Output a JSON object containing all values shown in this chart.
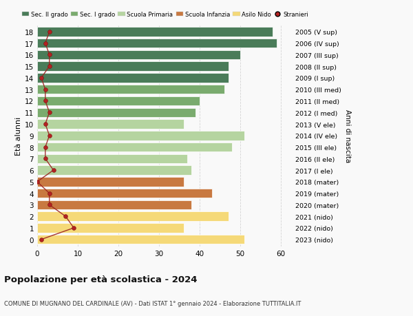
{
  "ages": [
    18,
    17,
    16,
    15,
    14,
    13,
    12,
    11,
    10,
    9,
    8,
    7,
    6,
    5,
    4,
    3,
    2,
    1,
    0
  ],
  "labels_right": [
    "2005 (V sup)",
    "2006 (IV sup)",
    "2007 (III sup)",
    "2008 (II sup)",
    "2009 (I sup)",
    "2010 (III med)",
    "2011 (II med)",
    "2012 (I med)",
    "2013 (V ele)",
    "2014 (IV ele)",
    "2015 (III ele)",
    "2016 (II ele)",
    "2017 (I ele)",
    "2018 (mater)",
    "2019 (mater)",
    "2020 (mater)",
    "2021 (nido)",
    "2022 (nido)",
    "2023 (nido)"
  ],
  "bar_values": [
    58,
    59,
    50,
    47,
    47,
    46,
    40,
    39,
    36,
    51,
    48,
    37,
    38,
    36,
    43,
    38,
    47,
    36,
    51
  ],
  "stranieri": [
    3,
    2,
    3,
    3,
    1,
    2,
    2,
    3,
    2,
    3,
    2,
    2,
    4,
    0,
    3,
    3,
    7,
    9,
    1
  ],
  "bar_colors": [
    "#4a7c59",
    "#4a7c59",
    "#4a7c59",
    "#4a7c59",
    "#4a7c59",
    "#7aab6e",
    "#7aab6e",
    "#7aab6e",
    "#b5d4a0",
    "#b5d4a0",
    "#b5d4a0",
    "#b5d4a0",
    "#b5d4a0",
    "#c87941",
    "#c87941",
    "#c87941",
    "#f5d978",
    "#f5d978",
    "#f5d978"
  ],
  "legend_labels": [
    "Sec. II grado",
    "Sec. I grado",
    "Scuola Primaria",
    "Scuola Infanzia",
    "Asilo Nido",
    "Stranieri"
  ],
  "legend_colors": [
    "#4a7c59",
    "#7aab6e",
    "#b5d4a0",
    "#c87941",
    "#f5d978",
    "#b22222"
  ],
  "stranieri_color": "#b22222",
  "stranieri_line_color": "#9b2020",
  "ylabel": "Età alunni",
  "ylabel_right": "Anni di nascita",
  "title": "Popolazione per età scolastica - 2024",
  "subtitle": "COMUNE DI MUGNANO DEL CARDINALE (AV) - Dati ISTAT 1° gennaio 2024 - Elaborazione TUTTITALIA.IT",
  "xlim": [
    0,
    63
  ],
  "ylim_min": -0.6,
  "ylim_max": 18.6,
  "bg_color": "#f9f9f9",
  "grid_color": "#cccccc"
}
